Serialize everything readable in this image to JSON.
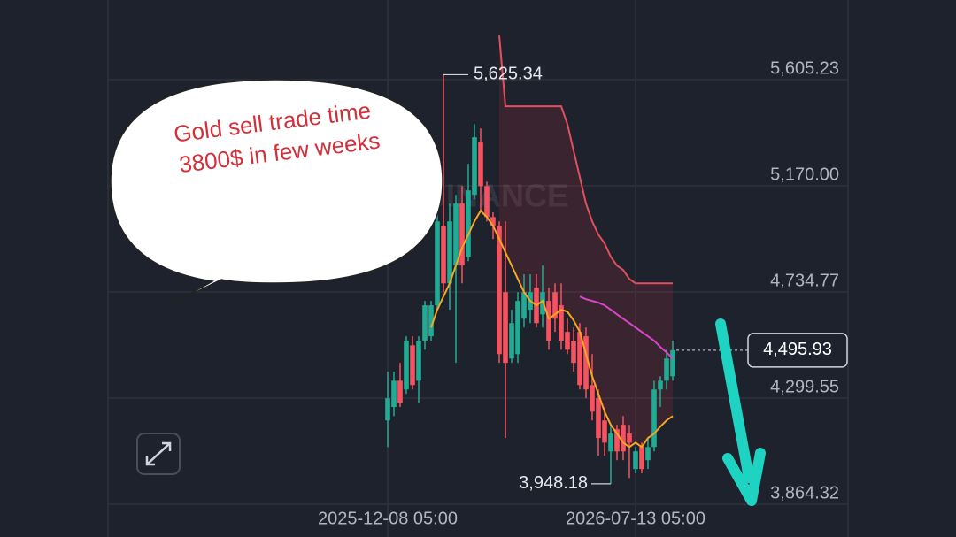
{
  "chart_data": {
    "type": "candlestick",
    "watermark": "BINANCE",
    "annotations": [
      "Gold sell trade time",
      "3800$ in few weeks"
    ],
    "categories": [
      "2025-12-08 05:00",
      null,
      null,
      null,
      null,
      null,
      null,
      null,
      null,
      null,
      null,
      null,
      null,
      null,
      null,
      null,
      null,
      null,
      null,
      null,
      null,
      null,
      null,
      null,
      null,
      null,
      null,
      null,
      null,
      null,
      null,
      null,
      null,
      null,
      null,
      null,
      null,
      null,
      null,
      null,
      "2026-07-13 05:00",
      null,
      null,
      null,
      null,
      null,
      null
    ],
    "open": [
      4208,
      4263,
      4371,
      4335,
      4516,
      4371,
      4535,
      4553,
      4680,
      5006,
      4770,
      4843,
      5097,
      4879,
      5133,
      5351,
      5169,
      5042,
      5006,
      4734,
      4462,
      4480,
      4625,
      4662,
      4752,
      4643,
      4698,
      4734,
      4680,
      4571,
      4535,
      4571,
      4553,
      4353,
      4299,
      4208,
      4081,
      4172,
      4190,
      4154,
      4009,
      4099,
      4045,
      4099,
      4335,
      4371,
      4389
    ],
    "high": [
      4408,
      4408,
      4444,
      4553,
      4553,
      4553,
      4698,
      4698,
      5061,
      5625.34,
      5097,
      5133,
      5169,
      5260,
      5423,
      5405,
      5187,
      5061,
      5024,
      5024,
      4662,
      4734,
      4807,
      4807,
      4807,
      4843,
      4752,
      4770,
      4770,
      4625,
      4589,
      4607,
      4589,
      4480,
      4335,
      4262,
      4190,
      4190,
      4226,
      4190,
      4099,
      4117,
      4136,
      4371,
      4389,
      4498,
      4535
    ],
    "low": [
      4099,
      4226,
      4263,
      4317,
      4335,
      4281,
      4498,
      4535,
      4662,
      4734,
      4662,
      4444,
      4770,
      4861,
      5115,
      5061,
      5024,
      4952,
      4444,
      4136,
      4444,
      4444,
      4589,
      4607,
      4589,
      4589,
      4498,
      4571,
      4498,
      4480,
      4408,
      4335,
      4299,
      4208,
      4063,
      4063,
      3948.18,
      4045,
      4045,
      3972,
      3991,
      3991,
      4009,
      4081,
      4263,
      4335,
      4371
    ],
    "close": [
      4299,
      4371,
      4281,
      4535,
      4353,
      4535,
      4680,
      4680,
      5024,
      4770,
      5024,
      5097,
      4843,
      5151,
      5369,
      5169,
      5042,
      5006,
      4480,
      4444,
      4607,
      4698,
      4734,
      4734,
      4607,
      4734,
      4535,
      4625,
      4535,
      4498,
      4444,
      4353,
      4335,
      4244,
      4136,
      4117,
      4154,
      4081,
      4081,
      4117,
      4081,
      4009,
      4099,
      4335,
      4371,
      4462,
      4495.93
    ],
    "value_labels": {
      "high": {
        "9": "5,625.34"
      },
      "low": {
        "36": "3,948.18"
      },
      "close": {
        "46": "4,495.93"
      }
    },
    "up_color": "#22ab94",
    "down_color": "#f7525f",
    "overlays": [
      {
        "color": "#f5a623",
        "values": [
          null,
          null,
          null,
          null,
          null,
          null,
          null,
          4589,
          4662,
          4716,
          4770,
          4843,
          4915,
          4970,
          5024,
          5068,
          5042,
          5006,
          4952,
          4897,
          4843,
          4788,
          4734,
          4698,
          4680,
          4698,
          4625,
          4643,
          4662,
          4654,
          4618,
          4571,
          4480,
          4389,
          4317,
          4244,
          4190,
          4154,
          4117,
          4099,
          4117,
          4099,
          4136,
          4154,
          4183,
          4208,
          4226
        ]
      },
      {
        "color": "#d946c8",
        "values": [
          null,
          null,
          null,
          null,
          null,
          null,
          null,
          null,
          null,
          null,
          null,
          null,
          null,
          null,
          null,
          null,
          null,
          null,
          null,
          null,
          null,
          null,
          null,
          null,
          null,
          null,
          null,
          null,
          null,
          null,
          null,
          4716,
          4705,
          4698,
          4691,
          4680,
          4662,
          4643,
          4625,
          4607,
          4589,
          4571,
          4553,
          4535,
          4509,
          4487,
          4462
        ]
      },
      {
        "color": "#e0505e",
        "fill_color": "rgba(242,54,69,0.13)",
        "fill_to_overlay": 0,
        "values": [
          null,
          null,
          null,
          null,
          null,
          null,
          null,
          null,
          null,
          null,
          null,
          null,
          null,
          null,
          null,
          null,
          null,
          null,
          5786,
          5496,
          5496,
          5496,
          5496,
          5496,
          5496,
          5496,
          5496,
          5496,
          5496,
          5423,
          5314,
          5206,
          5097,
          5024,
          4970,
          4934,
          4879,
          4843,
          4825,
          4788,
          4770,
          4770,
          4770,
          4770,
          4770,
          4770,
          4770
        ]
      }
    ],
    "ylim": [
      3864.32,
      5931.65
    ],
    "yticks": [
      {
        "value": 3864.32,
        "label": "3,864.32"
      },
      {
        "value": 4299.55,
        "label": "4,299.55"
      },
      {
        "value": 4734.77,
        "label": "4,734.77"
      },
      {
        "value": 5170.0,
        "label": "5,170.00"
      },
      {
        "value": 5605.23,
        "label": "5,605.23"
      }
    ],
    "grid": true
  }
}
